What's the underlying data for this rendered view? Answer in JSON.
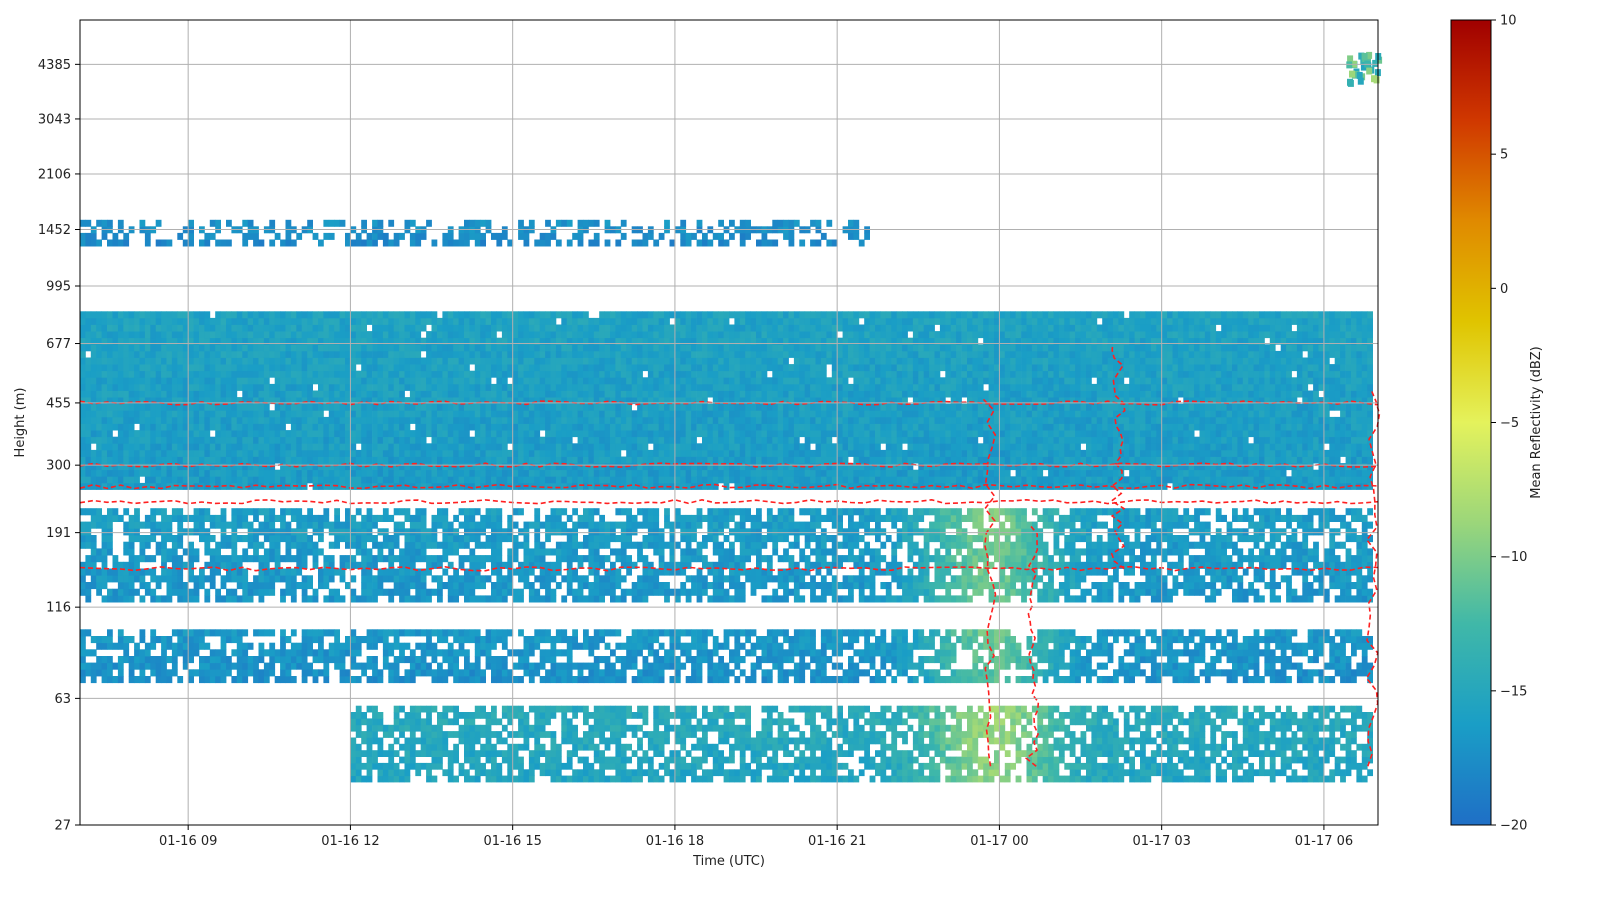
{
  "chart_data": {
    "type": "heatmap",
    "title": "",
    "xlabel": "Time (UTC)",
    "ylabel": "Height (m)",
    "x_ticks": [
      "01-16 09",
      "01-16 12",
      "01-16 15",
      "01-16 18",
      "01-16 21",
      "01-17 00",
      "01-17 03",
      "01-17 06"
    ],
    "x_range_hours": [
      -2,
      22
    ],
    "y_scale": "log",
    "y_ticks": [
      27,
      63,
      116,
      191,
      300,
      455,
      677,
      995,
      1452,
      2106,
      3043,
      4385
    ],
    "y_range_m": [
      27,
      5900
    ],
    "grid": true,
    "colorbar": {
      "label": "Mean Reflectivity (dBZ)",
      "min": -20,
      "max": 10,
      "ticks": [
        -20,
        -15,
        -10,
        -5,
        0,
        5,
        10
      ],
      "colors": [
        "#1f6fc6",
        "#1a9ec6",
        "#40b8a8",
        "#9bd67a",
        "#e4f25c",
        "#e0c400",
        "#e08a00",
        "#d03800",
        "#a00000"
      ]
    },
    "contour_color": "#ff2020",
    "layers": [
      {
        "from_m": 255,
        "to_m": 840,
        "t_start": -2,
        "t_end": 21.8,
        "mean_dbz": -16
      },
      {
        "from_m": 120,
        "to_m": 225,
        "t_start": -2,
        "t_end": 21.8,
        "mean_dbz": -16.5
      },
      {
        "from_m": 70,
        "to_m": 100,
        "t_start": -2,
        "t_end": 21.8,
        "mean_dbz": -17
      },
      {
        "from_m": 36,
        "to_m": 60,
        "t_start": 3,
        "t_end": 21.8,
        "mean_dbz": -15
      },
      {
        "from_m": 1300,
        "to_m": 1550,
        "t_start": -2,
        "t_end": 12.5,
        "mean_dbz": -17.5
      }
    ],
    "enhanced_regions": [
      {
        "t_center": 14.8,
        "from_m": 36,
        "to_m": 225,
        "peak_dbz": -11
      },
      {
        "t_center": 21.9,
        "from_m": 3800,
        "to_m": 4600,
        "peak_dbz": -9
      }
    ]
  }
}
